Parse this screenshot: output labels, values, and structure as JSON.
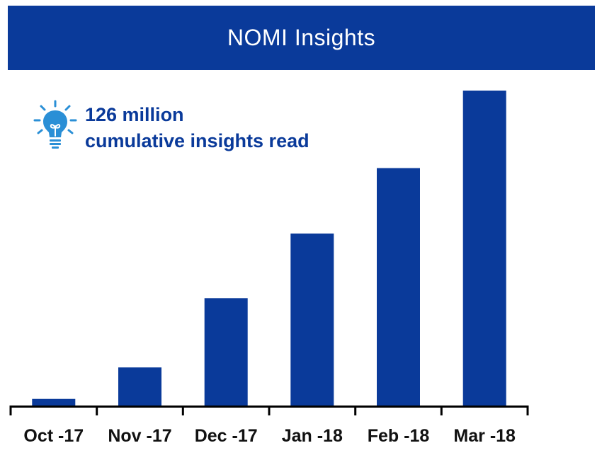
{
  "header": {
    "title": "NOMI Insights"
  },
  "callout": {
    "icon": "lightbulb-icon",
    "value": "126 million",
    "caption": "cumulative insights read"
  },
  "colors": {
    "brand": "#0a3a9a",
    "bar": "#0a3a9a",
    "axis": "#000000",
    "background": "#ffffff"
  },
  "chart_data": {
    "type": "bar",
    "categories": [
      "Oct -17",
      "Nov -17",
      "Dec -17",
      "Jan -18",
      "Feb -18",
      "Mar -18"
    ],
    "values": [
      2.1,
      12.1,
      34.1,
      54.6,
      75.4,
      100
    ],
    "ylim": [
      0,
      100
    ],
    "grid": false,
    "legend": "none"
  }
}
